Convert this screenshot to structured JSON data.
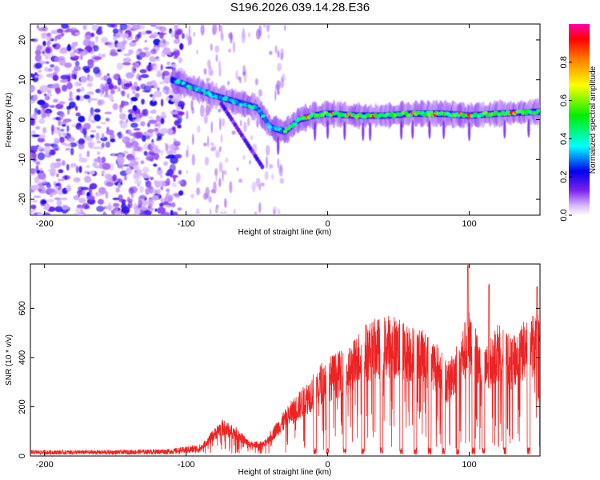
{
  "title": "S196.2026.039.14.28.E36",
  "chart_data": [
    {
      "type": "heatmap",
      "name": "spectrogram",
      "xlabel": "Height of straight line (km)",
      "ylabel": "Frequency (Hz)",
      "xlim": [
        -210,
        150
      ],
      "ylim": [
        -24,
        24
      ],
      "xticks": [
        -200,
        -100,
        0,
        100
      ],
      "yticks": [
        -20,
        -10,
        0,
        10,
        20
      ],
      "colorbar": {
        "label": "Normalized spectral amplitude",
        "range": [
          0,
          1
        ],
        "ticks": [
          0.0,
          0.2,
          0.4,
          0.6,
          0.8
        ]
      },
      "ridge": {
        "description_points_km_hz": [
          [
            -110,
            10
          ],
          [
            -95,
            8
          ],
          [
            -80,
            6
          ],
          [
            -70,
            5
          ],
          [
            -60,
            4
          ],
          [
            -50,
            3
          ],
          [
            -40,
            -2
          ],
          [
            -30,
            -3
          ],
          [
            -20,
            0
          ],
          [
            -10,
            1
          ],
          [
            0,
            1.5
          ],
          [
            20,
            1
          ],
          [
            40,
            1
          ],
          [
            60,
            1.5
          ],
          [
            80,
            1.5
          ],
          [
            100,
            1
          ],
          [
            120,
            1.5
          ],
          [
            150,
            2
          ]
        ],
        "peak_hz": 1.3
      }
    },
    {
      "type": "line",
      "name": "snr",
      "xlabel": "Height of straight line (km)",
      "ylabel": "SNR (10 * v/v)",
      "xlim": [
        -210,
        150
      ],
      "ylim": [
        0,
        780
      ],
      "xticks": [
        -200,
        -100,
        0,
        100
      ],
      "yticks": [
        0,
        200,
        400,
        600
      ],
      "color": "#ee2222",
      "envelope": [
        [
          -210,
          20
        ],
        [
          -150,
          20
        ],
        [
          -110,
          25
        ],
        [
          -90,
          40
        ],
        [
          -75,
          150
        ],
        [
          -65,
          120
        ],
        [
          -55,
          60
        ],
        [
          -45,
          60
        ],
        [
          -35,
          150
        ],
        [
          -25,
          230
        ],
        [
          -15,
          300
        ],
        [
          -5,
          380
        ],
        [
          5,
          420
        ],
        [
          15,
          440
        ],
        [
          25,
          540
        ],
        [
          35,
          560
        ],
        [
          45,
          580
        ],
        [
          55,
          540
        ],
        [
          65,
          520
        ],
        [
          75,
          480
        ],
        [
          85,
          380
        ],
        [
          95,
          520
        ],
        [
          100,
          600
        ],
        [
          110,
          420
        ],
        [
          120,
          560
        ],
        [
          130,
          480
        ],
        [
          140,
          560
        ],
        [
          150,
          600
        ]
      ],
      "dropouts_km": [
        -9,
        0,
        12,
        25,
        38,
        52,
        62,
        72,
        82,
        92,
        103,
        110,
        125,
        142
      ],
      "spikes": [
        [
          99,
          780
        ],
        [
          114,
          700
        ],
        [
          148,
          690
        ]
      ]
    }
  ]
}
